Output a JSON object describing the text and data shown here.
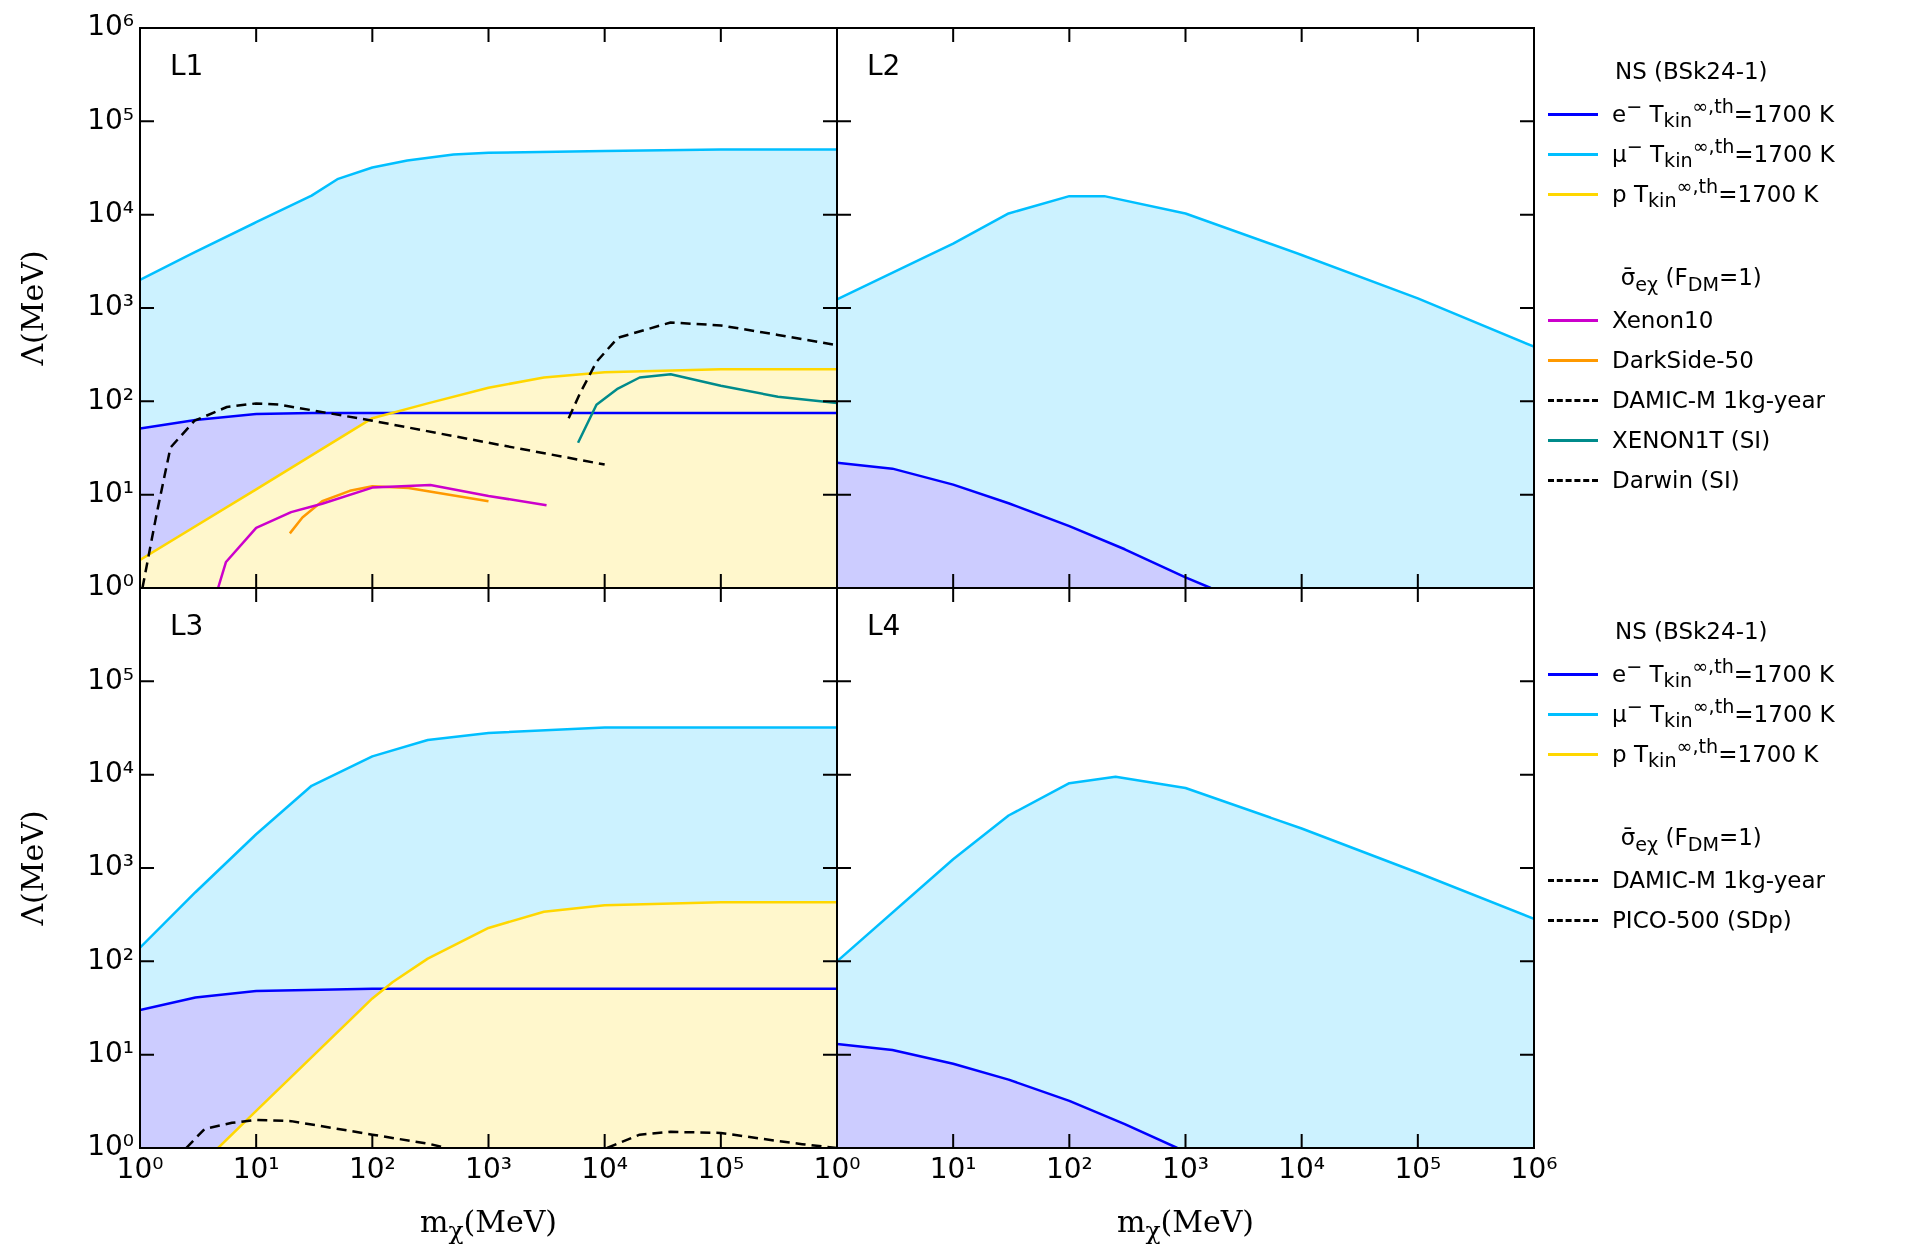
{
  "chart_data": [
    {
      "type": "area",
      "title": "L1",
      "ylabel": "Λ(MeV)",
      "legend_title": "NS (BSk24-1)",
      "annotations": [
        "σ̄$_{eχ}$ (F$_{DM}$=1)"
      ],
      "legend": "right",
      "tick_labels": "y",
      "log": "xy",
      "xlim": [
        1,
        1000000
      ],
      "ylim": [
        1,
        1000000
      ],
      "xticks": [
        {
          "value": 1,
          "label": null
        },
        {
          "value": 10,
          "label": null
        },
        {
          "value": 100,
          "label": null
        },
        {
          "value": 1000,
          "label": null
        },
        {
          "value": 10000,
          "label": null
        },
        {
          "value": 100000,
          "label": null
        },
        {
          "value": 1000000,
          "label": null
        }
      ],
      "yticks": [
        {
          "value": 1,
          "label": "10⁰"
        },
        {
          "value": 10,
          "label": "10¹"
        },
        {
          "value": 100,
          "label": "10²"
        },
        {
          "value": 1000,
          "label": "10³"
        },
        {
          "value": 10000,
          "label": "10⁴"
        },
        {
          "value": 100000,
          "label": "10⁵"
        },
        {
          "value": 1000000,
          "label": "10⁶"
        }
      ],
      "series": [
        {
          "name": "e$^{−}$ T$_{kin}$$^{∞,th}$=1700 K",
          "type": "area",
          "color": "#0000ff",
          "x": [
            1,
            3,
            10,
            30,
            1000000
          ],
          "values": [
            51,
            63,
            73,
            75,
            75
          ]
        },
        {
          "name": "μ$^{−}$ T$_{kin}$$^{∞,th}$=1700 K",
          "type": "area",
          "color": "#00bfff",
          "x": [
            1,
            3,
            10,
            30,
            50,
            100,
            200,
            500,
            1000,
            10000,
            100000,
            1000000
          ],
          "values": [
            2000,
            4000,
            8300,
            16000,
            24000,
            32000,
            38000,
            44000,
            46000,
            48000,
            50000,
            50000
          ]
        },
        {
          "name": "p T$_{kin}$$^{∞,th}$=1700 K",
          "type": "area",
          "color": "#ffd700",
          "x": [
            1,
            10,
            100,
            300,
            1000,
            3000,
            10000,
            100000,
            1000000
          ],
          "values": [
            2,
            11.4,
            66,
            95,
            140,
            180,
            205,
            220,
            220
          ]
        },
        {
          "name": "Xenon10",
          "type": "line",
          "color": "#cc00cc",
          "x": [
            4.7,
            5.5,
            10,
            20,
            37,
            100,
            316,
            1000,
            3160
          ],
          "values": [
            1,
            1.9,
            4.4,
            6.5,
            8,
            11.9,
            12.7,
            9.7,
            7.7
          ]
        },
        {
          "name": "DarkSide-50",
          "type": "line",
          "color": "#ff9900",
          "x": [
            19.5,
            25,
            37,
            64,
            100,
            205,
            1000
          ],
          "values": [
            3.85,
            5.7,
            8.5,
            11,
            12.3,
            11.8,
            8.5
          ]
        },
        {
          "name": "DAMIC-M 1kg-year",
          "type": "line",
          "color": "#000000",
          "line_style": "dashed",
          "x": [
            1.05,
            1.4,
            1.83,
            2.95,
            5.6,
            10,
            16,
            100,
            1000,
            10000
          ],
          "values": [
            1,
            6.5,
            32,
            62,
            87,
            95,
            92,
            62,
            36,
            21
          ]
        },
        {
          "name": "XENON1T (SI)",
          "type": "line",
          "color": "#008b8b",
          "x": [
            5900,
            8500,
            13000,
            20000,
            37000,
            100000,
            310000,
            1000000
          ],
          "values": [
            36,
            92,
            137,
            180,
            195,
            147,
            112,
            96
          ]
        },
        {
          "name": "Darwin (SI)",
          "type": "line",
          "color": "#000000",
          "line_style": "dashed",
          "x": [
            4900,
            6100,
            8500,
            13000,
            37000,
            100000,
            310000,
            1000000
          ],
          "values": [
            66,
            120,
            265,
            480,
            700,
            650,
            515,
            400
          ]
        }
      ]
    },
    {
      "type": "area",
      "title": "L2",
      "tick_labels": false,
      "log": "xy",
      "xlim": [
        1,
        1000000
      ],
      "ylim": [
        1,
        1000000
      ],
      "xticks": [
        {
          "value": 1,
          "label": null
        },
        {
          "value": 10,
          "label": null
        },
        {
          "value": 100,
          "label": null
        },
        {
          "value": 1000,
          "label": null
        },
        {
          "value": 10000,
          "label": null
        },
        {
          "value": 100000,
          "label": null
        },
        {
          "value": 1000000,
          "label": null
        }
      ],
      "yticks": [
        {
          "value": 1,
          "label": null
        },
        {
          "value": 10,
          "label": null
        },
        {
          "value": 100,
          "label": null
        },
        {
          "value": 1000,
          "label": null
        },
        {
          "value": 10000,
          "label": null
        },
        {
          "value": 100000,
          "label": null
        },
        {
          "value": 1000000,
          "label": null
        }
      ],
      "series": [
        {
          "type": "area",
          "color": "#0000ff",
          "x": [
            1,
            3,
            10,
            30,
            100,
            300,
            1000,
            1650
          ],
          "values": [
            22,
            19,
            12.8,
            8.1,
            4.6,
            2.6,
            1.3,
            1
          ]
        },
        {
          "type": "area",
          "color": "#00bfff",
          "x": [
            1,
            10,
            30,
            100,
            200,
            1000,
            10000,
            100000,
            1000000
          ],
          "values": [
            1240,
            4900,
            10300,
            15800,
            15800,
            10300,
            3700,
            1270,
            385
          ]
        }
      ]
    },
    {
      "type": "area",
      "title": "L3",
      "xlabel": "m$_{χ}$(MeV)",
      "ylabel": "Λ(MeV)",
      "legend_title": "NS (BSk24-1)",
      "annotations": [
        "σ̄$_{eχ}$ (F$_{DM}$=1)"
      ],
      "legend": "right",
      "log": "xy",
      "xlim": [
        1,
        1000000
      ],
      "ylim": [
        1,
        1000000
      ],
      "xticks": [
        {
          "value": 1,
          "label": "10⁰"
        },
        {
          "value": 10,
          "label": "10¹"
        },
        {
          "value": 100,
          "label": "10²"
        },
        {
          "value": 1000,
          "label": "10³"
        },
        {
          "value": 10000,
          "label": "10⁴"
        },
        {
          "value": 100000,
          "label": "10⁵"
        },
        {
          "value": 1000000,
          "label": null
        }
      ],
      "yticks": [
        {
          "value": 1,
          "label": "10⁰"
        },
        {
          "value": 10,
          "label": "10¹"
        },
        {
          "value": 100,
          "label": "10²"
        },
        {
          "value": 1000,
          "label": "10³"
        },
        {
          "value": 10000,
          "label": "10⁴"
        },
        {
          "value": 100000,
          "label": "10⁵"
        },
        {
          "value": 1000000,
          "label": null
        }
      ],
      "series": [
        {
          "name": "e$^{−}$ T$_{kin}$$^{∞,th}$=1700 K",
          "type": "area",
          "color": "#0000ff",
          "x": [
            1,
            3,
            10,
            100,
            1000000
          ],
          "values": [
            30,
            41,
            48,
            51,
            51
          ]
        },
        {
          "name": "μ$^{−}$ T$_{kin}$$^{∞,th}$=1700 K",
          "type": "area",
          "color": "#00bfff",
          "x": [
            1,
            3,
            10,
            30,
            100,
            300,
            1000,
            10000,
            1000000
          ],
          "values": [
            140,
            550,
            2300,
            7600,
            15700,
            23500,
            28000,
            32000,
            32000
          ]
        },
        {
          "name": "p T$_{kin}$$^{∞,th}$=1700 K",
          "type": "area",
          "color": "#ffd700",
          "x": [
            4.7,
            10,
            100,
            150,
            300,
            1000,
            3000,
            10000,
            100000,
            1000000
          ],
          "values": [
            1,
            2.5,
            40,
            60,
            107,
            228,
            340,
            400,
            430,
            430
          ]
        },
        {
          "name": "DAMIC-M 1kg-year",
          "type": "line",
          "color": "#000000",
          "line_style": "dashed",
          "x": [
            2.5,
            3.6,
            6.2,
            10,
            20,
            100,
            316,
            430
          ],
          "values": [
            1,
            1.6,
            1.86,
            2,
            1.94,
            1.39,
            1.1,
            1
          ]
        },
        {
          "name": "PICO-500 (SDp)",
          "type": "line",
          "color": "#000000",
          "line_style": "dashed",
          "x": [
            10500,
            20000,
            37000,
            100000,
            230000,
            500000,
            1000000
          ],
          "values": [
            1,
            1.39,
            1.49,
            1.45,
            1.25,
            1.1,
            1
          ]
        }
      ]
    },
    {
      "type": "area",
      "title": "L4",
      "xlabel": "m$_{χ}$(MeV)",
      "tick_labels": "x",
      "log": "xy",
      "xlim": [
        1,
        1000000
      ],
      "ylim": [
        1,
        1000000
      ],
      "xticks": [
        {
          "value": 1,
          "label": "10⁰"
        },
        {
          "value": 10,
          "label": "10¹"
        },
        {
          "value": 100,
          "label": "10²"
        },
        {
          "value": 1000,
          "label": "10³"
        },
        {
          "value": 10000,
          "label": "10⁴"
        },
        {
          "value": 100000,
          "label": "10⁵"
        },
        {
          "value": 1000000,
          "label": "10⁶"
        }
      ],
      "yticks": [
        {
          "value": 1,
          "label": null
        },
        {
          "value": 10,
          "label": null
        },
        {
          "value": 100,
          "label": null
        },
        {
          "value": 1000,
          "label": null
        },
        {
          "value": 10000,
          "label": null
        },
        {
          "value": 100000,
          "label": null
        },
        {
          "value": 1000000,
          "label": null
        }
      ],
      "series": [
        {
          "type": "area",
          "color": "#0000ff",
          "x": [
            1,
            3,
            10,
            30,
            100,
            300,
            850
          ],
          "values": [
            13,
            11.2,
            8,
            5.4,
            3.2,
            1.8,
            1
          ]
        },
        {
          "type": "area",
          "color": "#00bfff",
          "x": [
            1,
            10,
            30,
            100,
            250,
            1000,
            10000,
            100000,
            1000000
          ],
          "values": [
            100,
            1240,
            3650,
            8100,
            9500,
            7200,
            2650,
            890,
            285
          ]
        }
      ]
    }
  ]
}
